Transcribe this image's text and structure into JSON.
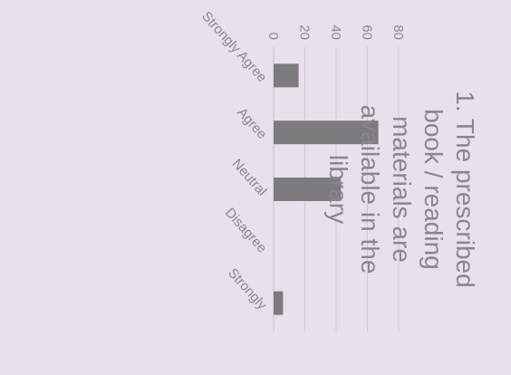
{
  "chart_data": {
    "type": "bar",
    "title_lines": [
      "1. The prescribed",
      "book / reading",
      "materials are",
      "available in the",
      "library"
    ],
    "categories": [
      "Strongly Agree",
      "Agree",
      "Neutral",
      "Disagree",
      "Strongly"
    ],
    "values": [
      16,
      67,
      43,
      0,
      6
    ],
    "ylim": [
      0,
      80
    ],
    "yticks": [
      0,
      20,
      40,
      60,
      80
    ],
    "grid": true,
    "legend": "none",
    "colors": {
      "background": "#e8e1ec",
      "bar": "#7d7a80",
      "text": "#8a8590",
      "grid": "#cfc6d6"
    }
  }
}
